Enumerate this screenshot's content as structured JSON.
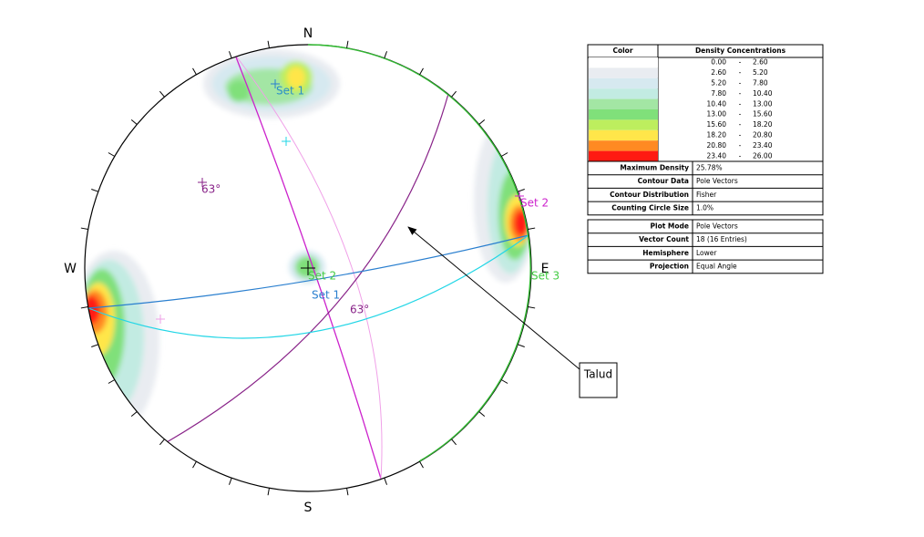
{
  "stereonet": {
    "north": "N",
    "south": "S",
    "east": "E",
    "west": "W",
    "labels": {
      "set1_pole": "Set 1",
      "dip_left": "63°",
      "set2_right": "Set 2",
      "set2_center": "Set 2",
      "set1_plane": "Set 1",
      "dip_center": "63°",
      "set3": "Set 3"
    },
    "callout": "Talud"
  },
  "legend": {
    "headers": [
      "Color",
      "Density Concentrations"
    ],
    "rows": [
      {
        "color": "#ffffff",
        "from": "0.00",
        "sep": "-",
        "to": "2.60"
      },
      {
        "color": "#e9ecf1",
        "from": "2.60",
        "sep": "-",
        "to": "5.20"
      },
      {
        "color": "#d6e9f0",
        "from": "5.20",
        "sep": "-",
        "to": "7.80"
      },
      {
        "color": "#c2ebe2",
        "from": "7.80",
        "sep": "-",
        "to": "10.40"
      },
      {
        "color": "#a3e6a4",
        "from": "10.40",
        "sep": "-",
        "to": "13.00"
      },
      {
        "color": "#80e07a",
        "from": "13.00",
        "sep": "-",
        "to": "15.60"
      },
      {
        "color": "#bdee5e",
        "from": "15.60",
        "sep": "-",
        "to": "18.20"
      },
      {
        "color": "#ffe64a",
        "from": "18.20",
        "sep": "-",
        "to": "20.80"
      },
      {
        "color": "#ff8a22",
        "from": "20.80",
        "sep": "-",
        "to": "23.40"
      },
      {
        "color": "#ff1a12",
        "from": "23.40",
        "sep": "-",
        "to": "26.00"
      }
    ]
  },
  "info_contour": [
    [
      "Maximum Density",
      "25.78%"
    ],
    [
      "Contour Data",
      "Pole Vectors"
    ],
    [
      "Contour Distribution",
      "Fisher"
    ],
    [
      "Counting Circle Size",
      "1.0%"
    ]
  ],
  "info_plot": [
    [
      "Plot Mode",
      "Pole Vectors"
    ],
    [
      "Vector Count",
      "18 (16 Entries)"
    ],
    [
      "Hemisphere",
      "Lower"
    ],
    [
      "Projection",
      "Equal Angle"
    ]
  ]
}
